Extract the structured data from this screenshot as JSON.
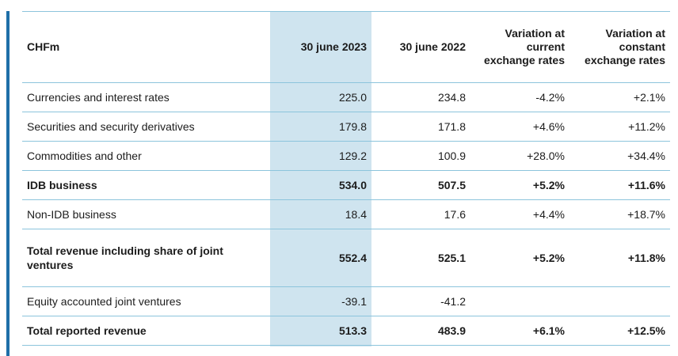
{
  "table": {
    "headers": {
      "label": "CHFm",
      "col1": "30 june 2023",
      "col2": "30 june 2022",
      "col3": "Variation at current exchange rates",
      "col4": "Variation at constant exchange rates"
    },
    "rows": [
      {
        "label": "Currencies and interest rates",
        "v2023": "225.0",
        "v2022": "234.8",
        "var_current": "-4.2%",
        "var_constant": "+2.1%"
      },
      {
        "label": "Securities and security derivatives",
        "v2023": "179.8",
        "v2022": "171.8",
        "var_current": "+4.6%",
        "var_constant": "+11.2%"
      },
      {
        "label": "Commodities and other",
        "v2023": "129.2",
        "v2022": "100.9",
        "var_current": "+28.0%",
        "var_constant": "+34.4%"
      },
      {
        "label": "IDB business",
        "v2023": "534.0",
        "v2022": "507.5",
        "var_current": "+5.2%",
        "var_constant": "+11.6%"
      },
      {
        "label": "Non-IDB business",
        "v2023": "18.4",
        "v2022": "17.6",
        "var_current": "+4.4%",
        "var_constant": "+18.7%"
      },
      {
        "label": "Total revenue including share of joint ventures",
        "v2023": "552.4",
        "v2022": "525.1",
        "var_current": "+5.2%",
        "var_constant": "+11.8%"
      },
      {
        "label": "Equity accounted joint ventures",
        "v2023": "-39.1",
        "v2022": "-41.2",
        "var_current": "",
        "var_constant": ""
      },
      {
        "label": "Total reported revenue",
        "v2023": "513.3",
        "v2022": "483.9",
        "var_current": "+6.1%",
        "var_constant": "+12.5%"
      }
    ]
  },
  "colors": {
    "accent_bar": "#1f6fa8",
    "highlight_column": "#cfe4ef",
    "row_divider": "#8cc4dc"
  }
}
